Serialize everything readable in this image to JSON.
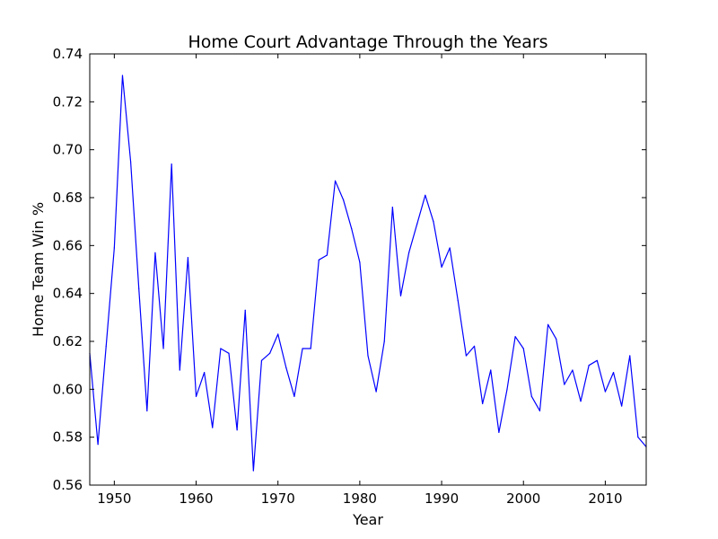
{
  "chart_data": {
    "type": "line",
    "title": "Home Court Advantage Through the Years",
    "xlabel": "Year",
    "ylabel": "Home Team Win %",
    "xlim": [
      1947,
      2015
    ],
    "ylim": [
      0.56,
      0.74
    ],
    "grid": false,
    "line_color": "#0000ff",
    "x_ticks": [
      1950,
      1960,
      1970,
      1980,
      1990,
      2000,
      2010
    ],
    "x_tick_labels": [
      "1950",
      "1960",
      "1970",
      "1980",
      "1990",
      "2000",
      "2010"
    ],
    "y_ticks": [
      0.56,
      0.58,
      0.6,
      0.62,
      0.64,
      0.66,
      0.68,
      0.7,
      0.72,
      0.74
    ],
    "y_tick_labels": [
      "0.56",
      "0.58",
      "0.60",
      "0.62",
      "0.64",
      "0.66",
      "0.68",
      "0.70",
      "0.72",
      "0.74"
    ],
    "series": [
      {
        "name": "Home Team Win %",
        "x": [
          1947,
          1948,
          1949,
          1950,
          1951,
          1952,
          1953,
          1954,
          1955,
          1956,
          1957,
          1958,
          1959,
          1960,
          1961,
          1962,
          1963,
          1964,
          1965,
          1966,
          1967,
          1968,
          1969,
          1970,
          1971,
          1972,
          1973,
          1974,
          1975,
          1976,
          1977,
          1978,
          1979,
          1980,
          1981,
          1982,
          1983,
          1984,
          1985,
          1986,
          1987,
          1988,
          1989,
          1990,
          1991,
          1992,
          1993,
          1994,
          1995,
          1996,
          1997,
          1998,
          1999,
          2000,
          2001,
          2002,
          2003,
          2004,
          2005,
          2006,
          2007,
          2008,
          2009,
          2010,
          2011,
          2012,
          2013,
          2014,
          2015
        ],
        "values": [
          0.615,
          0.577,
          0.618,
          0.659,
          0.731,
          0.695,
          0.642,
          0.591,
          0.657,
          0.617,
          0.694,
          0.608,
          0.655,
          0.597,
          0.607,
          0.584,
          0.617,
          0.615,
          0.583,
          0.633,
          0.566,
          0.612,
          0.615,
          0.623,
          0.609,
          0.597,
          0.617,
          0.617,
          0.654,
          0.656,
          0.687,
          0.679,
          0.667,
          0.653,
          0.614,
          0.599,
          0.62,
          0.676,
          0.639,
          0.657,
          0.669,
          0.681,
          0.67,
          0.651,
          0.659,
          0.637,
          0.614,
          0.618,
          0.594,
          0.608,
          0.582,
          0.6,
          0.622,
          0.617,
          0.597,
          0.591,
          0.627,
          0.621,
          0.602,
          0.608,
          0.595,
          0.61,
          0.612,
          0.599,
          0.607,
          0.593,
          0.614,
          0.58,
          0.576
        ]
      }
    ]
  }
}
